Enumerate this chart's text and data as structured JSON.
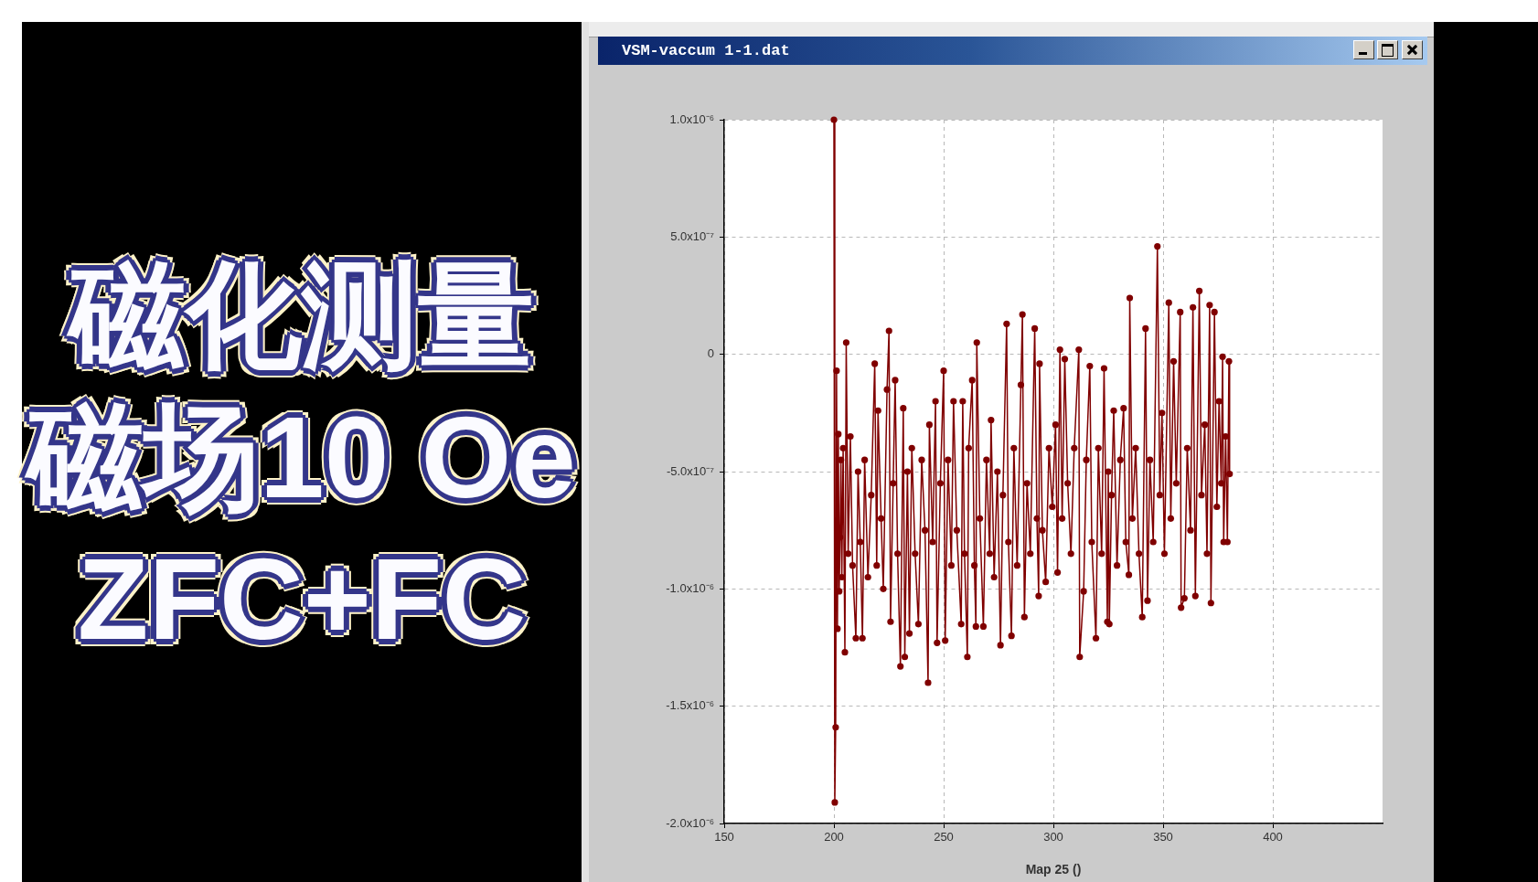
{
  "chart_data": {
    "type": "line",
    "title": "VSM-vaccum 1-1.dat",
    "xlabel": "Map 25 ()",
    "annotations": [
      "磁化测量",
      "磁场10 Oe",
      "ZFC+FC"
    ],
    "x": [
      200,
      200.4,
      200.8,
      201.2,
      201.6,
      202,
      202.4,
      202.8,
      203.2,
      203.6,
      204.2,
      205,
      205.6,
      206.5,
      207.5,
      208.5,
      210,
      211,
      212,
      213,
      214,
      215.5,
      217,
      218.6,
      219.5,
      220.1,
      221.5,
      222.5,
      224.2,
      225.1,
      225.8,
      227,
      227.9,
      229,
      230.3,
      231.6,
      232.3,
      233.5,
      234.4,
      235.5,
      237,
      238.5,
      240,
      241.5,
      242.9,
      243.5,
      245,
      246.3,
      247,
      248.5,
      250,
      250.7,
      252,
      253.5,
      254.5,
      256,
      258,
      258.7,
      259.5,
      260.8,
      261.4,
      263,
      264,
      264.7,
      265.1,
      266.5,
      268.1,
      269.5,
      271,
      271.6,
      273,
      274.5,
      275.9,
      277,
      278.7,
      279.5,
      280.9,
      282,
      283.5,
      285.2,
      285.9,
      286.8,
      288,
      289.5,
      291.5,
      292.5,
      293.3,
      293.7,
      295,
      296.5,
      298,
      299.5,
      301,
      301.9,
      303,
      304,
      305.2,
      306.5,
      308,
      309.5,
      311.6,
      312,
      313.8,
      315,
      316.6,
      317.5,
      319.4,
      320.5,
      322,
      323.1,
      324.6,
      325,
      325.5,
      326.5,
      327.5,
      329,
      330.5,
      332,
      333,
      334.4,
      334.8,
      336,
      337.5,
      339,
      340.5,
      342,
      342.9,
      344,
      345.5,
      347.4,
      348.5,
      349.5,
      350.6,
      352.6,
      353.5,
      354.8,
      356,
      357.8,
      358.2,
      359.7,
      361,
      362.5,
      363.6,
      364.7,
      366.5,
      367.5,
      369,
      370,
      371.2,
      371.8,
      373.4,
      374.5,
      375.5,
      376.5,
      377.1,
      377.6,
      378.5,
      379.3,
      380,
      380.3
    ],
    "values": [
      1e-06,
      -1.91e-06,
      -1.59e-06,
      -7e-08,
      -1.17e-06,
      -3.4e-07,
      -1.01e-06,
      -7.8e-07,
      -4.5e-07,
      -9.5e-07,
      -4e-07,
      -1.27e-06,
      5e-08,
      -8.5e-07,
      -3.5e-07,
      -9e-07,
      -1.21e-06,
      -5e-07,
      -8e-07,
      -1.21e-06,
      -4.5e-07,
      -9.5e-07,
      -6e-07,
      -4e-08,
      -9e-07,
      -2.4e-07,
      -7e-07,
      -1e-06,
      -1.5e-07,
      1e-07,
      -1.14e-06,
      -5.5e-07,
      -1.1e-07,
      -8.5e-07,
      -1.33e-06,
      -2.3e-07,
      -1.29e-06,
      -5e-07,
      -1.19e-06,
      -4e-07,
      -8.5e-07,
      -1.15e-06,
      -4.5e-07,
      -7.5e-07,
      -1.4e-06,
      -3e-07,
      -8e-07,
      -2e-07,
      -1.23e-06,
      -5.5e-07,
      -7e-08,
      -1.22e-06,
      -4.5e-07,
      -9e-07,
      -2e-07,
      -7.5e-07,
      -1.15e-06,
      -2e-07,
      -8.5e-07,
      -1.29e-06,
      -4e-07,
      -1.1e-07,
      -9e-07,
      -1.16e-06,
      5e-08,
      -7e-07,
      -1.16e-06,
      -4.5e-07,
      -8.5e-07,
      -2.8e-07,
      -9.5e-07,
      -5e-07,
      -1.24e-06,
      -6e-07,
      1.3e-07,
      -8e-07,
      -1.2e-06,
      -4e-07,
      -9e-07,
      -1.3e-07,
      1.7e-07,
      -1.12e-06,
      -5.5e-07,
      -8.5e-07,
      1.1e-07,
      -7e-07,
      -1.03e-06,
      -4e-08,
      -7.5e-07,
      -9.7e-07,
      -4e-07,
      -6.5e-07,
      -3e-07,
      -9.3e-07,
      2e-08,
      -7e-07,
      -2e-08,
      -5.5e-07,
      -8.5e-07,
      -4e-07,
      2e-08,
      -1.29e-06,
      -1.01e-06,
      -4.5e-07,
      -5e-08,
      -8e-07,
      -1.21e-06,
      -4e-07,
      -8.5e-07,
      -6e-08,
      -1.14e-06,
      -5e-07,
      -1.15e-06,
      -6e-07,
      -2.4e-07,
      -9e-07,
      -4.5e-07,
      -2.3e-07,
      -8e-07,
      -9.4e-07,
      2.4e-07,
      -7e-07,
      -4e-07,
      -8.5e-07,
      -1.12e-06,
      1.1e-07,
      -1.05e-06,
      -4.5e-07,
      -8e-07,
      4.6e-07,
      -6e-07,
      -2.5e-07,
      -8.5e-07,
      2.2e-07,
      -7e-07,
      -3e-08,
      -5.5e-07,
      1.8e-07,
      -1.08e-06,
      -1.04e-06,
      -4e-07,
      -7.5e-07,
      2e-07,
      -1.03e-06,
      2.7e-07,
      -6e-07,
      -3e-07,
      -8.5e-07,
      2.1e-07,
      -1.06e-06,
      1.8e-07,
      -6.5e-07,
      -2e-07,
      -5.5e-07,
      -1e-08,
      -8e-07,
      -3.5e-07,
      -8e-07,
      -3e-08,
      -5.1e-07
    ],
    "color": "#800000",
    "xlim": [
      150,
      450
    ],
    "xticks": [
      150,
      200,
      250,
      300,
      350,
      400
    ],
    "ylim": [
      -2e-06,
      1e-06
    ],
    "yticks": [
      {
        "value": 1e-06,
        "label": "1.0x10⁻⁶"
      },
      {
        "value": 5e-07,
        "label": "5.0x10⁻⁷"
      },
      0,
      {
        "value": -5e-07,
        "label": "-5.0x10⁻⁷"
      },
      {
        "value": -1e-06,
        "label": "-1.0x10⁻⁶"
      },
      {
        "value": -1.5e-06,
        "label": "-1.5x10⁻⁶"
      },
      {
        "value": -2e-06,
        "label": "-2.0x10⁻⁶"
      }
    ],
    "grid": true,
    "marker": "circle",
    "line_style": "solid"
  }
}
